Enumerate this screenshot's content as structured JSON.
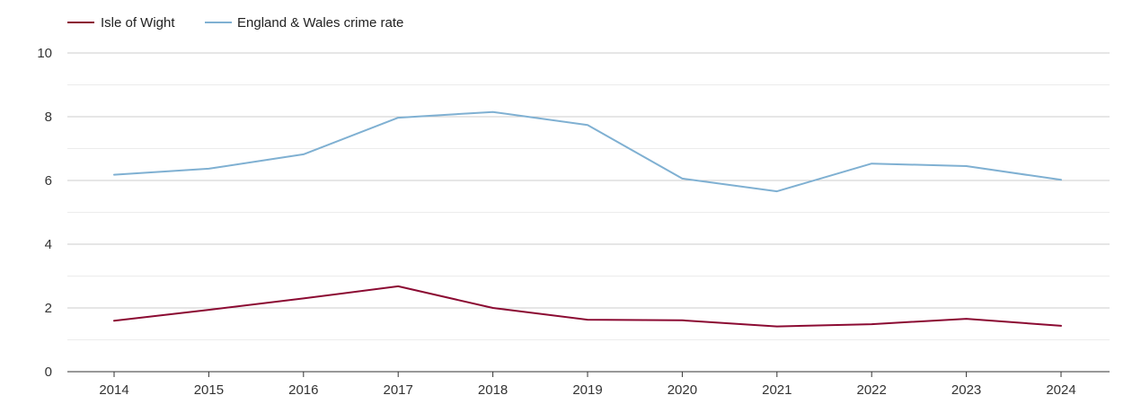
{
  "chart_data": {
    "type": "line",
    "title": "",
    "xlabel": "",
    "ylabel": "",
    "x": [
      "2014",
      "2015",
      "2016",
      "2017",
      "2018",
      "2019",
      "2020",
      "2021",
      "2022",
      "2023",
      "2024"
    ],
    "ylim": [
      0,
      10
    ],
    "yticks": [
      "0",
      "2",
      "4",
      "6",
      "8",
      "10"
    ],
    "grid": true,
    "legend_position": "top-left",
    "series": [
      {
        "name": "Isle of Wight",
        "color": "#8b0a32",
        "values": [
          1.6,
          1.94,
          2.3,
          2.68,
          2.0,
          1.63,
          1.61,
          1.42,
          1.49,
          1.66,
          1.44
        ]
      },
      {
        "name": "England & Wales crime rate",
        "color": "#7fb0d2",
        "values": [
          6.18,
          6.37,
          6.82,
          7.97,
          8.15,
          7.74,
          6.06,
          5.66,
          6.53,
          6.45,
          6.02
        ]
      }
    ]
  }
}
